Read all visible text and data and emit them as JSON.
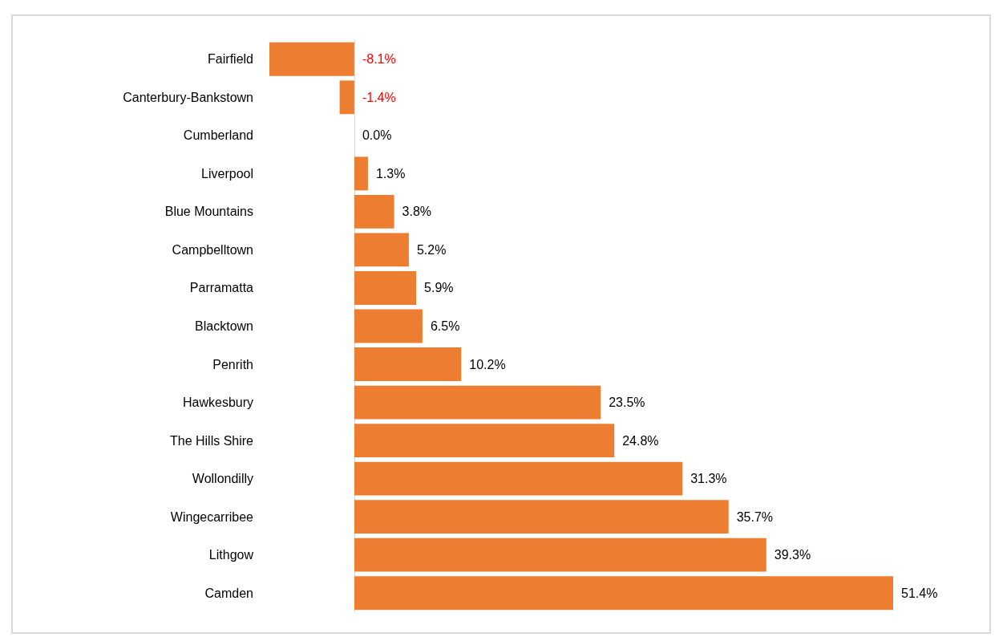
{
  "chart_data": {
    "type": "bar",
    "orientation": "horizontal",
    "categories": [
      "Fairfield",
      "Canterbury-Bankstown",
      "Cumberland",
      "Liverpool",
      "Blue Mountains",
      "Campbelltown",
      "Parramatta",
      "Blacktown",
      "Penrith",
      "Hawkesbury",
      "The Hills Shire",
      "Wollondilly",
      "Wingecarribee",
      "Lithgow",
      "Camden"
    ],
    "values": [
      -8.1,
      -1.4,
      0.0,
      1.3,
      3.8,
      5.2,
      5.9,
      6.5,
      10.2,
      23.5,
      24.8,
      31.3,
      35.7,
      39.3,
      51.4
    ],
    "value_labels": [
      "-8.1%",
      "-1.4%",
      "0.0%",
      "1.3%",
      "3.8%",
      "5.2%",
      "5.9%",
      "6.5%",
      "10.2%",
      "23.5%",
      "24.8%",
      "31.3%",
      "35.7%",
      "39.3%",
      "51.4%"
    ],
    "color": "#ed7d31"
  }
}
